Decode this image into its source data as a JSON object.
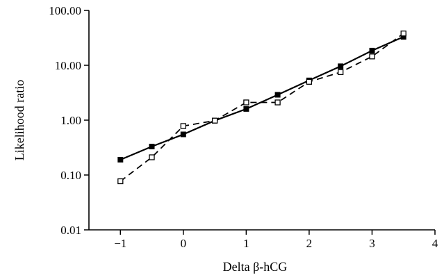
{
  "chart_data": {
    "type": "line",
    "title": "",
    "xlabel": "Delta β-hCG",
    "ylabel": "Likelihood ratio",
    "xlim": [
      -1.5,
      4
    ],
    "ylim": [
      0.01,
      100
    ],
    "y_scale": "log",
    "grid": false,
    "x_ticks": [
      -1,
      0,
      1,
      2,
      3,
      4
    ],
    "x_tick_labels": [
      "−1",
      "0",
      "1",
      "2",
      "3",
      "4"
    ],
    "y_ticks": [
      0.01,
      0.1,
      1,
      10,
      100
    ],
    "y_tick_labels": [
      "0.01",
      "0.10",
      "1.00",
      "10.00",
      "100.00"
    ],
    "series": [
      {
        "marker": "filled-square",
        "line_style": "solid",
        "color": "#000000",
        "x": [
          -1,
          -0.5,
          0,
          0.5,
          1,
          1.5,
          2,
          2.5,
          3,
          3.5
        ],
        "y": [
          0.19,
          0.33,
          0.55,
          0.98,
          1.6,
          2.9,
          5.3,
          9.6,
          18.5,
          33
        ]
      },
      {
        "marker": "open-square",
        "line_style": "dashed",
        "color": "#000000",
        "x": [
          -1,
          -0.5,
          0,
          0.5,
          1,
          1.5,
          2,
          2.5,
          3,
          3.5
        ],
        "y": [
          0.077,
          0.21,
          0.78,
          0.98,
          2.1,
          2.1,
          5.0,
          7.5,
          14.5,
          38
        ]
      }
    ]
  }
}
